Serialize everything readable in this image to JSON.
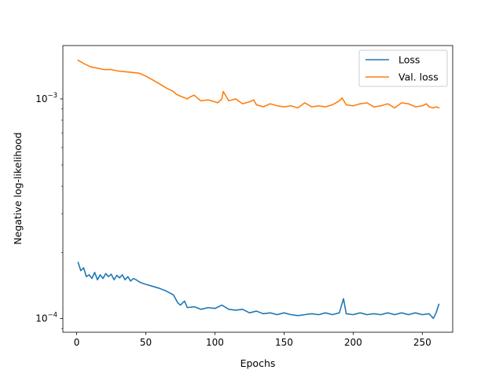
{
  "chart_data": {
    "type": "line",
    "title": "",
    "xlabel": "Epochs",
    "ylabel": "Negative log-likelihood",
    "xscale": "linear",
    "yscale": "log",
    "xlim": [
      -10,
      272
    ],
    "ylim": [
      8.65e-05,
      0.00175
    ],
    "xticks": [
      0,
      50,
      100,
      150,
      200,
      250
    ],
    "xtick_labels": [
      "0",
      "50",
      "100",
      "150",
      "200",
      "250"
    ],
    "yticks": [
      0.0001,
      0.001
    ],
    "ytick_labels": [
      {
        "base": "10",
        "exp": "−4"
      },
      {
        "base": "10",
        "exp": "−3"
      }
    ],
    "grid": false,
    "legend_position": "upper right",
    "series": [
      {
        "name": "Loss",
        "color": "#1f77b4",
        "x": [
          1,
          3,
          5,
          7,
          9,
          11,
          13,
          15,
          17,
          19,
          21,
          23,
          25,
          27,
          29,
          31,
          33,
          35,
          37,
          39,
          41,
          43,
          45,
          47,
          50,
          55,
          60,
          65,
          70,
          73,
          75,
          78,
          80,
          85,
          90,
          95,
          100,
          105,
          110,
          115,
          120,
          125,
          130,
          135,
          140,
          145,
          150,
          155,
          160,
          165,
          170,
          175,
          180,
          185,
          190,
          193,
          195,
          200,
          205,
          210,
          215,
          220,
          225,
          230,
          235,
          240,
          245,
          250,
          255,
          258,
          260,
          262
        ],
        "y": [
          0.00018,
          0.000165,
          0.00017,
          0.000155,
          0.000158,
          0.000152,
          0.000162,
          0.00015,
          0.000158,
          0.000152,
          0.00016,
          0.000155,
          0.000159,
          0.00015,
          0.000157,
          0.000153,
          0.000158,
          0.00015,
          0.000155,
          0.000148,
          0.000152,
          0.00015,
          0.000147,
          0.000145,
          0.000143,
          0.00014,
          0.000137,
          0.000133,
          0.000128,
          0.000118,
          0.000115,
          0.00012,
          0.000112,
          0.000113,
          0.00011,
          0.000112,
          0.000111,
          0.000115,
          0.00011,
          0.000109,
          0.00011,
          0.000106,
          0.000108,
          0.000105,
          0.000106,
          0.000104,
          0.000106,
          0.000104,
          0.000103,
          0.000104,
          0.000105,
          0.000104,
          0.000106,
          0.000104,
          0.000106,
          0.000123,
          0.000105,
          0.000104,
          0.000106,
          0.000104,
          0.000105,
          0.000104,
          0.000106,
          0.000104,
          0.000106,
          0.000104,
          0.000106,
          0.000104,
          0.000105,
          0.0001,
          0.000106,
          0.000116
        ]
      },
      {
        "name": "Val. loss",
        "color": "#ff7f0e",
        "x": [
          1,
          5,
          10,
          15,
          20,
          25,
          30,
          35,
          40,
          45,
          50,
          55,
          60,
          65,
          70,
          72,
          75,
          80,
          82,
          85,
          88,
          90,
          95,
          100,
          102,
          105,
          106,
          108,
          110,
          115,
          120,
          125,
          128,
          130,
          135,
          140,
          145,
          150,
          155,
          160,
          165,
          170,
          175,
          180,
          185,
          190,
          192,
          195,
          200,
          205,
          210,
          215,
          220,
          225,
          230,
          235,
          240,
          245,
          250,
          253,
          255,
          258,
          260,
          262
        ],
        "y": [
          0.0015,
          0.00145,
          0.0014,
          0.00138,
          0.00136,
          0.00136,
          0.00134,
          0.00133,
          0.00132,
          0.00131,
          0.00127,
          0.00122,
          0.00117,
          0.00112,
          0.00108,
          0.00105,
          0.00103,
          0.001,
          0.00102,
          0.00104,
          0.001,
          0.00098,
          0.00099,
          0.00097,
          0.00096,
          0.001,
          0.00108,
          0.00103,
          0.00098,
          0.001,
          0.00095,
          0.00097,
          0.00099,
          0.00094,
          0.00092,
          0.00095,
          0.00093,
          0.00092,
          0.00093,
          0.00091,
          0.00096,
          0.00092,
          0.00093,
          0.00092,
          0.00094,
          0.00098,
          0.00101,
          0.00094,
          0.00093,
          0.00095,
          0.00096,
          0.00092,
          0.00093,
          0.00095,
          0.00091,
          0.00096,
          0.00095,
          0.00092,
          0.00093,
          0.00095,
          0.00092,
          0.00091,
          0.00092,
          0.00091
        ]
      }
    ]
  }
}
